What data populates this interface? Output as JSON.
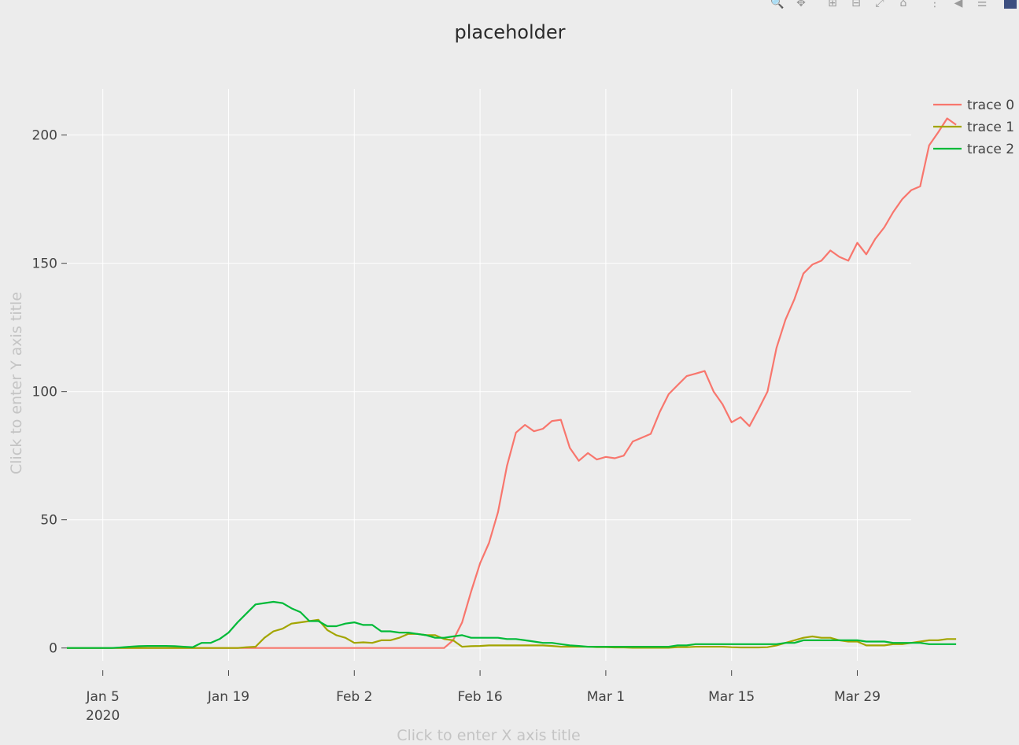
{
  "chart_data": {
    "type": "line",
    "title": "placeholder",
    "xlabel": "Click to enter X axis title",
    "ylabel": "Click to enter Y axis title",
    "x_start": "2020-01-01",
    "x_end": "2020-04-04",
    "ylim": [
      -5,
      218
    ],
    "x_ticks": [
      {
        "date": "2020-01-05",
        "label": "Jan 5",
        "sublabel": "2020"
      },
      {
        "date": "2020-01-19",
        "label": "Jan 19"
      },
      {
        "date": "2020-02-02",
        "label": "Feb 2"
      },
      {
        "date": "2020-02-16",
        "label": "Feb 16"
      },
      {
        "date": "2020-03-01",
        "label": "Mar 1"
      },
      {
        "date": "2020-03-15",
        "label": "Mar 15"
      },
      {
        "date": "2020-03-29",
        "label": "Mar 29"
      }
    ],
    "y_ticks": [
      0,
      50,
      100,
      150,
      200
    ],
    "grid": true,
    "legend_position": "right",
    "series": [
      {
        "name": "trace 0",
        "color": "#f8766d",
        "values": [
          0,
          0,
          0,
          0,
          0,
          0,
          0,
          0,
          0,
          0,
          0,
          0,
          0,
          0,
          0,
          0,
          0,
          0,
          0,
          0,
          0,
          0,
          0,
          0,
          0,
          0,
          0,
          0,
          0,
          0,
          0,
          0,
          0,
          0,
          0,
          0,
          0,
          0,
          0,
          0,
          0,
          0,
          0,
          3,
          10,
          22,
          33,
          41,
          53,
          71,
          84,
          87,
          84.5,
          85.5,
          88.5,
          89,
          78,
          73,
          76,
          73.5,
          74.5,
          74,
          75,
          80.5,
          82,
          83.5,
          92,
          99,
          102.5,
          106,
          107,
          108,
          100,
          95,
          88,
          90,
          86.5,
          93,
          100,
          117,
          128,
          136,
          146,
          149.5,
          151,
          155,
          152.5,
          151,
          158,
          153.5,
          159.5,
          164,
          170,
          175,
          178.5,
          180,
          196,
          201,
          206.5,
          204
        ]
      },
      {
        "name": "trace 1",
        "color": "#a3a500",
        "values": [
          0,
          0,
          0,
          0,
          0,
          0,
          0,
          0,
          0,
          0,
          0,
          0,
          0,
          0,
          0,
          0,
          0,
          0,
          0,
          0,
          0.3,
          0.5,
          4,
          6.5,
          7.5,
          9.5,
          10,
          10.5,
          11,
          7,
          5,
          4,
          2,
          2.2,
          2,
          3,
          3,
          4,
          5.5,
          5.5,
          5,
          5,
          3.5,
          3,
          0.5,
          0.7,
          0.8,
          1,
          1,
          1,
          1,
          1,
          1,
          1,
          0.8,
          0.5,
          0.5,
          0.5,
          0.5,
          0.3,
          0.3,
          0.2,
          0.2,
          0.1,
          0.1,
          0.1,
          0.1,
          0.1,
          0.3,
          0.3,
          0.5,
          0.5,
          0.5,
          0.5,
          0.3,
          0.2,
          0.2,
          0.2,
          0.3,
          1,
          2,
          3,
          4,
          4.5,
          4,
          4,
          3,
          2.5,
          2.5,
          1,
          1,
          1,
          1.5,
          1.5,
          2,
          2.5,
          3,
          3,
          3.5,
          3.5
        ]
      },
      {
        "name": "trace 2",
        "color": "#00ba38",
        "values": [
          0,
          0,
          0,
          0,
          0,
          0,
          0.2,
          0.5,
          0.7,
          0.8,
          0.8,
          0.8,
          0.7,
          0.5,
          0.3,
          2,
          2,
          3.5,
          6,
          10,
          13.5,
          17,
          17.5,
          18,
          17.5,
          15.5,
          14,
          10.5,
          10.5,
          8.5,
          8.5,
          9.5,
          10,
          9,
          9,
          6.5,
          6.5,
          6,
          6,
          5.5,
          5,
          4,
          4,
          4.5,
          5,
          4,
          4,
          4,
          4,
          3.5,
          3.5,
          3,
          2.5,
          2,
          2,
          1.5,
          1,
          0.8,
          0.5,
          0.5,
          0.5,
          0.5,
          0.5,
          0.5,
          0.5,
          0.5,
          0.5,
          0.5,
          1,
          1,
          1.5,
          1.5,
          1.5,
          1.5,
          1.5,
          1.5,
          1.5,
          1.5,
          1.5,
          1.5,
          2,
          2,
          3,
          3,
          3,
          3,
          3,
          3,
          3,
          2.5,
          2.5,
          2.5,
          2,
          2,
          2,
          2,
          1.5,
          1.5,
          1.5,
          1.5
        ]
      }
    ]
  },
  "modebar": {
    "icons": [
      "zoom-icon",
      "pan-icon",
      "zoom-in-icon",
      "zoom-out-icon",
      "autoscale-icon",
      "home-icon",
      "spike-icon",
      "hover-closest-icon",
      "hover-compare-icon",
      "plotly-logo-icon"
    ]
  }
}
